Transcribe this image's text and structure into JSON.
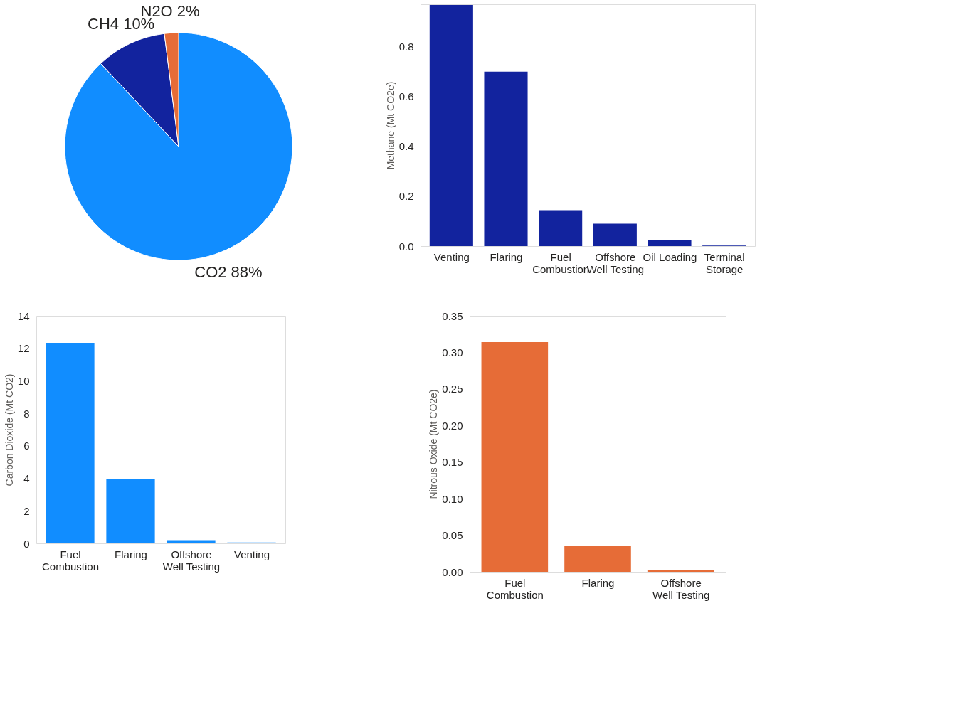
{
  "chart_data": [
    {
      "type": "pie",
      "categories": [
        "CO2",
        "CH4",
        "N2O"
      ],
      "values": [
        88,
        10,
        2
      ],
      "value_labels": [
        "88%",
        "10%",
        "2%"
      ],
      "colors": [
        "#118dff",
        "#12239e",
        "#e66c37"
      ],
      "legend": false
    },
    {
      "type": "bar",
      "ylabel": "Methane (Mt CO2e)",
      "categories": [
        "Venting",
        "Flaring",
        "Fuel Combustion",
        "Offshore Well Testing",
        "Oil Loading",
        "Terminal Storage"
      ],
      "series": [
        {
          "color": "#12239e",
          "values": [
            0.967,
            0.7,
            0.144,
            0.09,
            0.023,
            0.002
          ]
        }
      ],
      "ylim": [
        0,
        0.97
      ],
      "yticks": [
        {
          "value": 0,
          "label": "0.0"
        },
        0.2,
        0.4,
        0.6,
        0.8
      ],
      "grid": false,
      "legend": false
    },
    {
      "type": "bar",
      "ylabel": "Carbon Dioxide (Mt CO2)",
      "categories": [
        "Fuel Combustion",
        "Flaring",
        "Offshore Well Testing",
        "Venting"
      ],
      "series": [
        {
          "color": "#118dff",
          "values": [
            12.34,
            3.94,
            0.2,
            0.05
          ]
        }
      ],
      "ylim": [
        0,
        14
      ],
      "yticks": [
        0,
        2,
        4,
        6,
        8,
        10,
        12,
        14
      ],
      "grid": false,
      "legend": false
    },
    {
      "type": "bar",
      "ylabel": "Nitrous Oxide (Mt CO2e)",
      "categories": [
        "Fuel Combustion",
        "Flaring",
        "Offshore Well Testing"
      ],
      "series": [
        {
          "color": "#e66c37",
          "values": [
            0.314,
            0.035,
            0.002
          ]
        }
      ],
      "ylim": [
        0,
        0.35
      ],
      "yticks": [
        {
          "value": 0,
          "label": "0.00"
        },
        0.05,
        {
          "value": 0.1,
          "label": "0.10"
        },
        0.15,
        {
          "value": 0.2,
          "label": "0.20"
        },
        0.25,
        {
          "value": 0.3,
          "label": "0.30"
        },
        0.35
      ],
      "grid": false,
      "legend": false
    }
  ]
}
